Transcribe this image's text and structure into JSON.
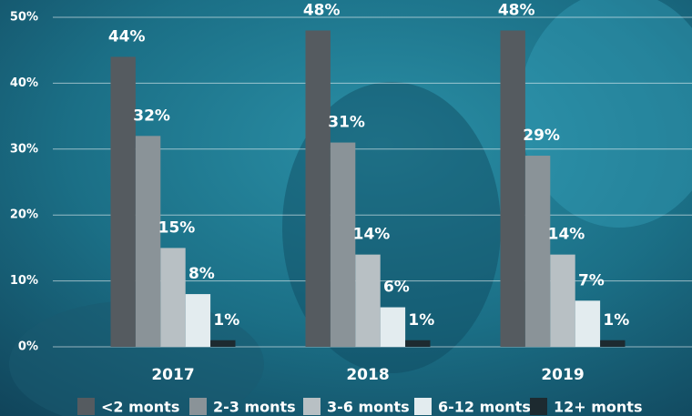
{
  "chart_data": {
    "type": "bar",
    "categories": [
      "2017",
      "2018",
      "2019"
    ],
    "series": [
      {
        "name": "<2 monts",
        "color": "#555b60",
        "values": [
          44,
          48,
          48
        ],
        "value_labels": [
          "44%",
          "48%",
          "48%"
        ]
      },
      {
        "name": "2-3 monts",
        "color": "#8a9398",
        "values": [
          32,
          31,
          29
        ],
        "value_labels": [
          "32%",
          "31%",
          "29%"
        ]
      },
      {
        "name": "3-6 monts",
        "color": "#b8c0c4",
        "values": [
          15,
          14,
          14
        ],
        "value_labels": [
          "15%",
          "14%",
          "14%"
        ]
      },
      {
        "name": "6-12 monts",
        "color": "#e3ecef",
        "values": [
          8,
          6,
          7
        ],
        "value_labels": [
          "8%",
          "6%",
          "7%"
        ]
      },
      {
        "name": "12+ monts",
        "color": "#1d2a30",
        "values": [
          1,
          1,
          1
        ],
        "value_labels": [
          "1%",
          "1%",
          "1%"
        ]
      }
    ],
    "ylim": [
      0,
      50
    ],
    "yticks": [
      {
        "value": 0,
        "label": "0%"
      },
      {
        "value": 10,
        "label": "10%"
      },
      {
        "value": 20,
        "label": "20%"
      },
      {
        "value": 30,
        "label": "30%"
      },
      {
        "value": 40,
        "label": "40%"
      },
      {
        "value": 50,
        "label": "50%"
      }
    ],
    "grid": true,
    "legend": "bottom"
  }
}
